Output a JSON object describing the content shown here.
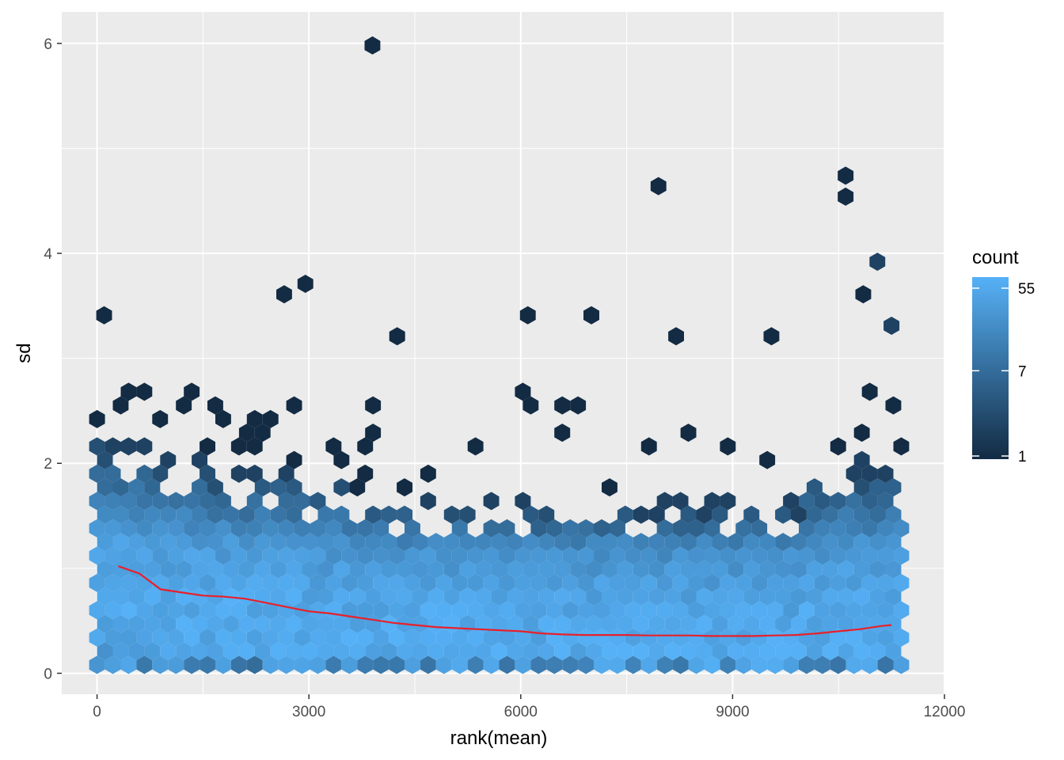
{
  "chart_data": {
    "type": "hexbin",
    "xlabel": "rank(mean)",
    "ylabel": "sd",
    "xlim": [
      -500,
      12000
    ],
    "ylim": [
      -0.2,
      6.3
    ],
    "x_ticks": [
      0,
      3000,
      6000,
      9000,
      12000
    ],
    "x_tick_labels": [
      "0",
      "3000",
      "6000",
      "9000",
      "12000"
    ],
    "y_ticks": [
      0,
      2,
      4,
      6
    ],
    "y_tick_labels": [
      "0",
      "2",
      "4",
      "6"
    ],
    "grid": true,
    "legend": {
      "title": "count",
      "position": "right",
      "scale": "log",
      "breaks": [
        55,
        7,
        1
      ],
      "break_labels": [
        "55",
        "7",
        "1"
      ],
      "low_color": "#132B43",
      "high_color": "#56B1F7"
    },
    "trend_line": {
      "color": "#e8202a",
      "x": [
        300,
        600,
        900,
        1200,
        1500,
        1800,
        2100,
        2400,
        2700,
        3000,
        3300,
        3600,
        3900,
        4200,
        4500,
        4800,
        5100,
        5400,
        5700,
        6000,
        6300,
        6600,
        6900,
        7200,
        7500,
        7800,
        8100,
        8400,
        8700,
        9000,
        9300,
        9600,
        9900,
        10200,
        10500,
        10800,
        11100,
        11250
      ],
      "y": [
        1.02,
        0.95,
        0.8,
        0.77,
        0.74,
        0.73,
        0.71,
        0.67,
        0.63,
        0.59,
        0.57,
        0.54,
        0.51,
        0.48,
        0.46,
        0.44,
        0.43,
        0.42,
        0.41,
        0.4,
        0.38,
        0.37,
        0.365,
        0.365,
        0.365,
        0.36,
        0.36,
        0.36,
        0.355,
        0.355,
        0.355,
        0.36,
        0.365,
        0.38,
        0.4,
        0.42,
        0.45,
        0.46
      ]
    },
    "outliers": [
      {
        "x": 3900,
        "y": 5.98,
        "count": 1
      },
      {
        "x": 7950,
        "y": 4.64,
        "count": 1
      },
      {
        "x": 10600,
        "y": 4.74,
        "count": 1
      },
      {
        "x": 10600,
        "y": 4.54,
        "count": 1
      },
      {
        "x": 11050,
        "y": 3.92,
        "count": 2
      },
      {
        "x": 2950,
        "y": 3.71,
        "count": 1
      },
      {
        "x": 2650,
        "y": 3.61,
        "count": 1
      },
      {
        "x": 10850,
        "y": 3.61,
        "count": 1
      },
      {
        "x": 100,
        "y": 3.41,
        "count": 1
      },
      {
        "x": 7000,
        "y": 3.41,
        "count": 1
      },
      {
        "x": 6100,
        "y": 3.41,
        "count": 1
      },
      {
        "x": 11250,
        "y": 3.31,
        "count": 2
      },
      {
        "x": 8200,
        "y": 3.21,
        "count": 1
      },
      {
        "x": 4250,
        "y": 3.21,
        "count": 1
      },
      {
        "x": 9550,
        "y": 3.21,
        "count": 1
      }
    ],
    "body": {
      "x_range": [
        0,
        11500
      ],
      "dense_band_sd": [
        0.1,
        1.0
      ],
      "sparse_band_sd": [
        1.0,
        2.5
      ],
      "max_count": 55,
      "min_count": 1
    }
  }
}
